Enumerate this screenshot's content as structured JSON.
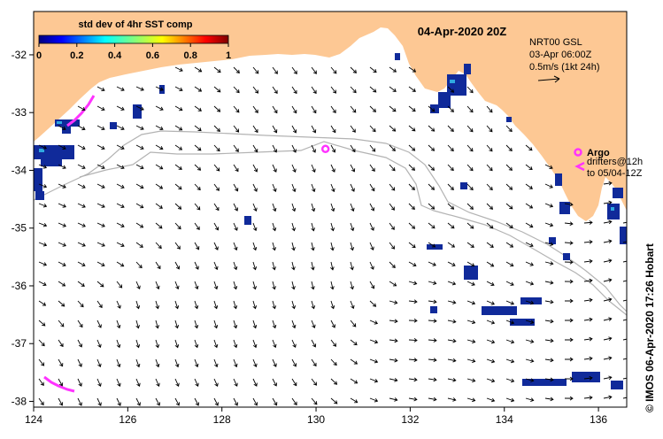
{
  "map": {
    "title": "04-Apr-2020 20Z",
    "lon_range": [
      124,
      136.6
    ],
    "lat_range": [
      -38.1,
      -31.25
    ],
    "x_ticks": [
      124,
      126,
      128,
      130,
      132,
      134,
      136
    ],
    "x_tick_labels": [
      "124",
      "126",
      "128",
      "130",
      "132",
      "134",
      "136"
    ],
    "y_ticks": [
      -32,
      -33,
      -34,
      -35,
      -36,
      -37,
      -38
    ],
    "y_tick_labels": [
      "-32",
      "-33",
      "-34",
      "-35",
      "-36",
      "-37",
      "-38"
    ],
    "land_color": "#FDC894",
    "shelf_color": "#aaaaaa"
  },
  "colorbar": {
    "title": "std dev of 4hr SST comp",
    "ticks": [
      0,
      0.2,
      0.4,
      0.6,
      0.8,
      1
    ],
    "tick_labels": [
      "0",
      "0.2",
      "0.4",
      "0.6",
      "0.8",
      "1"
    ]
  },
  "current_legend": {
    "line1": "NRT00 GSL",
    "line2": "03-Apr 06:00Z",
    "line3": "0.5m/s (1kt 24h)"
  },
  "argo_legend": {
    "argo_label": "Argo",
    "drifter_line1": "drifters@12h",
    "drifter_line2": "to 05/04-12Z",
    "argo_color": "#ff33ff"
  },
  "argo_float": {
    "lon": 130.2,
    "lat": -33.63
  },
  "credit": "© IMOS 06-Apr-2020 17:26 Hobart"
}
